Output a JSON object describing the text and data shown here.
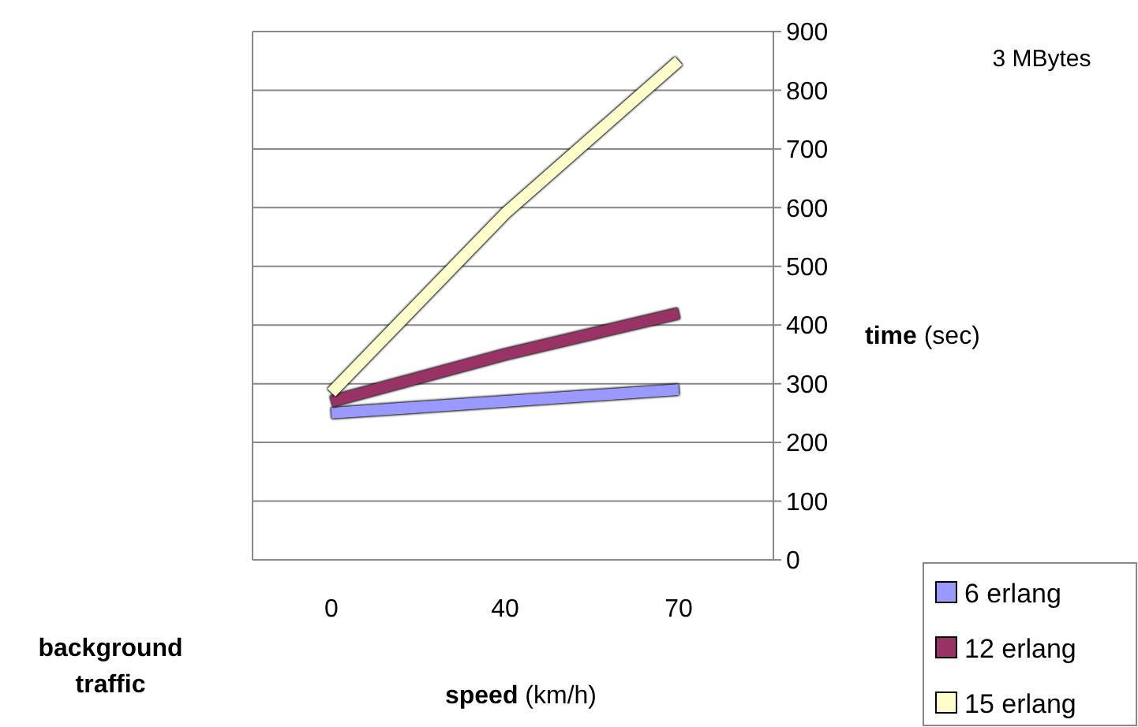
{
  "chart_data": {
    "type": "line",
    "categories": [
      "0",
      "40",
      "70"
    ],
    "series": [
      {
        "name": "6 erlang",
        "color": "#9999ff",
        "values": [
          250,
          270,
          290
        ]
      },
      {
        "name": "12 erlang",
        "color": "#993366",
        "values": [
          270,
          350,
          420
        ]
      },
      {
        "name": "15 erlang",
        "color": "#ffffcc",
        "values": [
          285,
          590,
          850
        ]
      }
    ],
    "ylim": [
      0,
      900
    ],
    "yticks": [
      0,
      100,
      200,
      300,
      400,
      500,
      600,
      700,
      800,
      900
    ],
    "grid": "y",
    "legend": "bottom right",
    "ylabel": "time (sec)",
    "xlabel": "speed (km/h)",
    "annotations": [
      "3 MBytes",
      "background traffic"
    ],
    "marker": "none",
    "line_style": "solid"
  }
}
